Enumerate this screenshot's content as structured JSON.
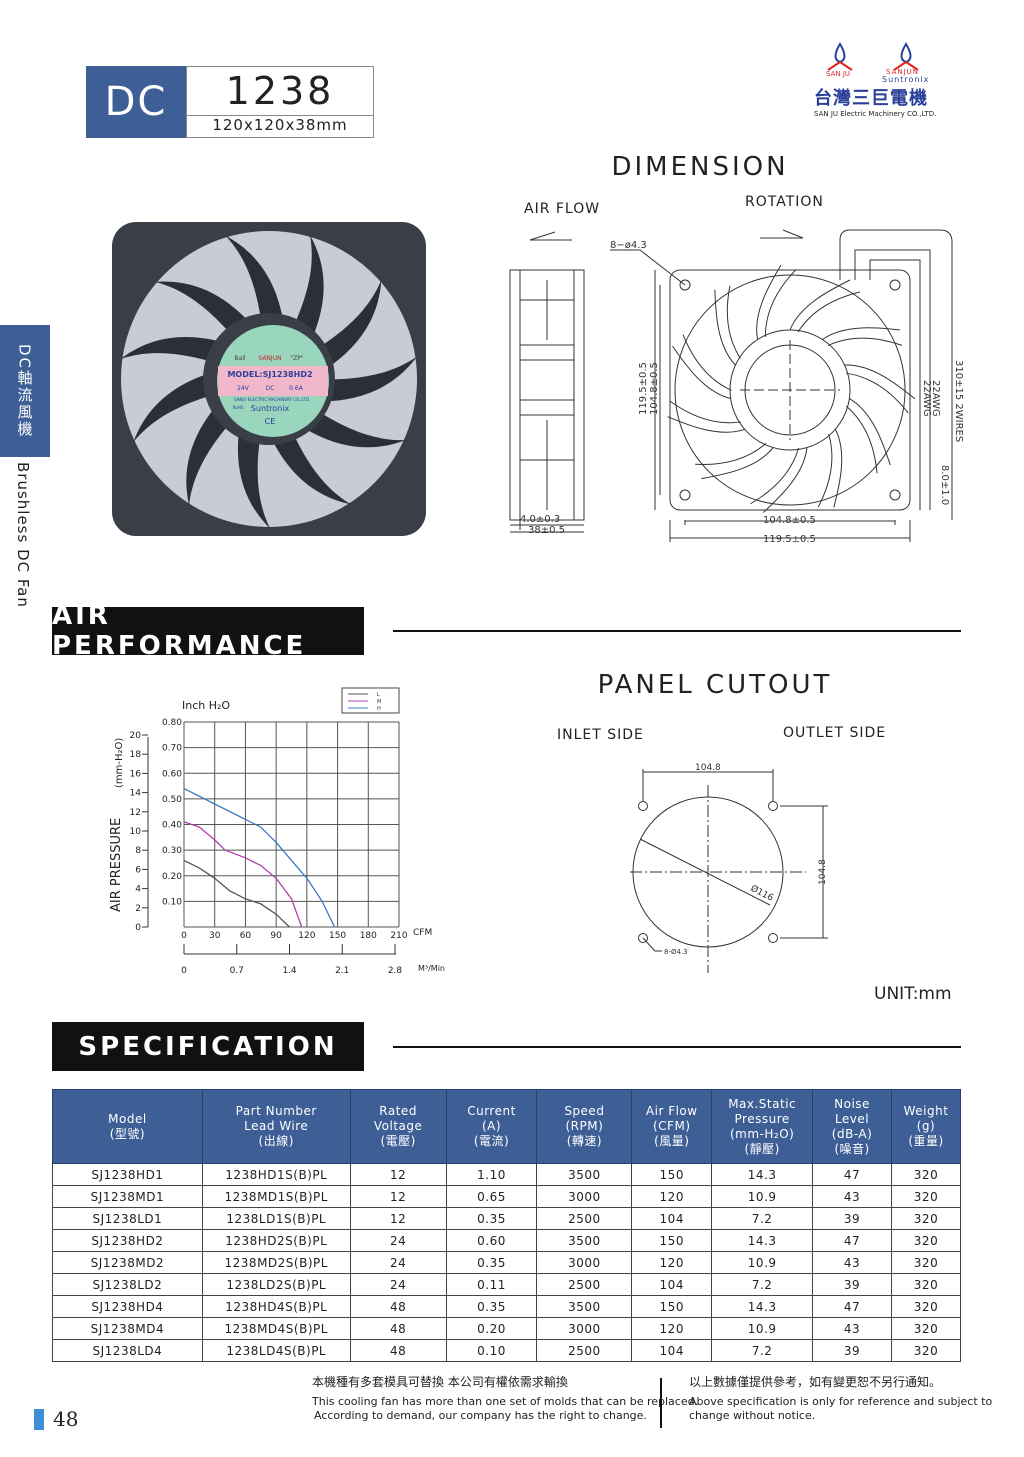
{
  "header": {
    "series": "DC",
    "model": "1238",
    "size": "120x120x38mm"
  },
  "logo": {
    "brand1": "SAN JU",
    "brand2": "SANJUN",
    "brand3": "Suntronix",
    "company_cn": "台灣三巨電機",
    "company_en": "SAN JU Electric  Machinery CO.,LTD."
  },
  "side": {
    "tab_cn": "DC軸流風機",
    "tab_en": "Brushless DC Fan"
  },
  "fan_label": {
    "bearing": "Ball",
    "brand": "SANJUN",
    "code": "\"ZP\"",
    "model": "MODEL:SJ1238HD2",
    "voltage": "24V",
    "type": "DC",
    "current": "0.6A",
    "maker": "SANJU ELECTRIC MACHINERY CO.,LTD.",
    "rohs": "RoHS",
    "suntronix": "Suntronix",
    "ce": "CE"
  },
  "dimension": {
    "title": "DIMENSION",
    "air_flow": "AIR FLOW",
    "rotation": "ROTATION",
    "holes": "8−ø4.3",
    "frame_thk": "4.0±0.3",
    "depth": "38±0.5",
    "height_outer": "119.5±0.5",
    "height_inner": "104.8±0.5",
    "width_inner": "104.8±0.5",
    "width_outer": "119.5±0.5",
    "wire_len": "310±15  2WIRES",
    "awg1": "22AWG",
    "awg2": "22AWG",
    "strip": "8.0±1.0"
  },
  "air_performance": {
    "title": "AIR PERFORMANCE"
  },
  "panel_cutout": {
    "title": "PANEL CUTOUT",
    "inlet": "INLET SIDE",
    "outlet": "OUTLET SIDE",
    "spacing_h": "104.8",
    "spacing_v": "104.8",
    "diameter": "Ø116",
    "holes": "8-Ø4.3",
    "unit": "UNIT:mm"
  },
  "chart_data": {
    "type": "line",
    "ylabel": "AIR PRESSURE",
    "ylabel_right_unit": "(mm-H₂O)",
    "yunit_label": "Inch H₂O",
    "xunit_label": "CFM",
    "x2unit_label": "M³/Min",
    "xlim": [
      0,
      210
    ],
    "ylim": [
      0,
      0.8
    ],
    "xticks": [
      "0",
      "30",
      "60",
      "90",
      "120",
      "150",
      "180",
      "210"
    ],
    "yticks": [
      "0.10",
      "0.20",
      "0.30",
      "0.40",
      "0.50",
      "0.60",
      "0.70",
      "0.80"
    ],
    "mm_ticks": [
      "0",
      "2",
      "4",
      "6",
      "8",
      "10",
      "12",
      "14",
      "16",
      "18",
      "20"
    ],
    "x2ticks": [
      "0",
      "0.7",
      "1.4",
      "2.1",
      "2.8"
    ],
    "grid": true,
    "legend_position": "top-right",
    "series": [
      {
        "name": "L",
        "color": "#555555",
        "x": [
          0,
          15,
          30,
          45,
          60,
          75,
          90,
          103
        ],
        "y": [
          0.26,
          0.23,
          0.19,
          0.14,
          0.11,
          0.09,
          0.05,
          0
        ]
      },
      {
        "name": "M",
        "color": "#b040b0",
        "x": [
          0,
          15,
          30,
          40,
          60,
          75,
          90,
          105,
          115
        ],
        "y": [
          0.41,
          0.39,
          0.34,
          0.3,
          0.27,
          0.24,
          0.19,
          0.11,
          0
        ]
      },
      {
        "name": "H",
        "color": "#3a78c8",
        "x": [
          0,
          30,
          60,
          75,
          90,
          105,
          120,
          135,
          147
        ],
        "y": [
          0.54,
          0.48,
          0.42,
          0.39,
          0.33,
          0.26,
          0.19,
          0.1,
          0
        ]
      }
    ]
  },
  "specification": {
    "title": "SPECIFICATION",
    "headers": [
      [
        "Model",
        "(型號)"
      ],
      [
        "Part Number",
        "Lead Wire",
        "(出線)"
      ],
      [
        "Rated",
        "Voltage",
        "(電壓)"
      ],
      [
        "Current",
        "(A)",
        "(電流)"
      ],
      [
        "Speed",
        "(RPM)",
        "(轉速)"
      ],
      [
        "Air Flow",
        "(CFM)",
        "(風量)"
      ],
      [
        "Max.Static",
        "Pressure",
        "(mm-H₂O)",
        "(靜壓)"
      ],
      [
        "Noise",
        "Level",
        "(dB-A)",
        "(噪音)"
      ],
      [
        "Weight",
        "(g)",
        "(重量)"
      ]
    ],
    "rows": [
      [
        "SJ1238HD1",
        "1238HD1S(B)PL",
        "12",
        "1.10",
        "3500",
        "150",
        "14.3",
        "47",
        "320"
      ],
      [
        "SJ1238MD1",
        "1238MD1S(B)PL",
        "12",
        "0.65",
        "3000",
        "120",
        "10.9",
        "43",
        "320"
      ],
      [
        "SJ1238LD1",
        "1238LD1S(B)PL",
        "12",
        "0.35",
        "2500",
        "104",
        "7.2",
        "39",
        "320"
      ],
      [
        "SJ1238HD2",
        "1238HD2S(B)PL",
        "24",
        "0.60",
        "3500",
        "150",
        "14.3",
        "47",
        "320"
      ],
      [
        "SJ1238MD2",
        "1238MD2S(B)PL",
        "24",
        "0.35",
        "3000",
        "120",
        "10.9",
        "43",
        "320"
      ],
      [
        "SJ1238LD2",
        "1238LD2S(B)PL",
        "24",
        "0.11",
        "2500",
        "104",
        "7.2",
        "39",
        "320"
      ],
      [
        "SJ1238HD4",
        "1238HD4S(B)PL",
        "48",
        "0.35",
        "3500",
        "150",
        "14.3",
        "47",
        "320"
      ],
      [
        "SJ1238MD4",
        "1238MD4S(B)PL",
        "48",
        "0.20",
        "3000",
        "120",
        "10.9",
        "43",
        "320"
      ],
      [
        "SJ1238LD4",
        "1238LD4S(B)PL",
        "48",
        "0.10",
        "2500",
        "104",
        "7.2",
        "39",
        "320"
      ]
    ]
  },
  "footer": {
    "page": "48",
    "note1_cn": "本機種有多套模具可替換 本公司有權依需求輸換",
    "note1_en1": "This cooling fan has more than one set of molds that  can be replaced.",
    "note1_en2": "According to demand, our company has the right to change.",
    "note2_cn": "以上數據僅提供參考，如有變更恕不另行通知。",
    "note2_en1": "Above specification is only for reference and subject to",
    "note2_en2": "change without notice.",
    "accent": "#3d8fd8"
  }
}
